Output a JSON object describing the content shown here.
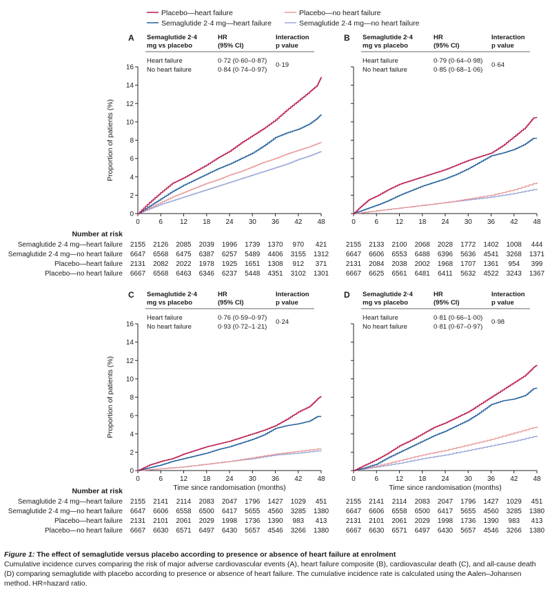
{
  "legend": [
    {
      "label": "Placebo—heart failure",
      "color": "#b8174a"
    },
    {
      "label": "Placebo—no heart failure",
      "color": "#e89a9a"
    },
    {
      "label": "Semaglutide 2·4 mg—heart failure",
      "color": "#1f5e9a"
    },
    {
      "label": "Semaglutide 2·4 mg—no heart failure",
      "color": "#9aa6d8"
    }
  ],
  "table_header": {
    "col1": "Semaglutide 2·4 mg vs placebo",
    "col2": "HR (95% CI)",
    "col3": "Interaction p value"
  },
  "risk_title": "Number at risk",
  "risk_labels": [
    "Semaglutide 2·4 mg—heart failure",
    "Semaglutide 2·4 mg—no heart failure",
    "Placebo—heart failure",
    "Placebo—no heart failure"
  ],
  "xlabel": "Time since randomisation (months)",
  "ylabel": "Proportion of patients (%)",
  "caption": {
    "fig_label": "Figure 1:",
    "title": "The effect of semaglutide versus placebo according to presence or absence of heart failure at enrolment",
    "body": "Cumulative incidence curves comparing the risk of major adverse cardiovascular events (A), heart failure composite (B), cardiovascular death (C), and all-cause death (D) comparing semaglutide with placebo according to presence or absence of heart failure. The cumulative incidence rate is calculated using the Aalen–Johansen method. HR=hazard ratio."
  },
  "chart_data": [
    {
      "panel": "A",
      "type": "line",
      "xlim": [
        0,
        48
      ],
      "ylim": [
        0,
        16
      ],
      "xticks": [
        0,
        6,
        12,
        18,
        24,
        30,
        36,
        42,
        48
      ],
      "yticks": [
        0,
        2,
        4,
        6,
        8,
        10,
        12,
        14,
        16
      ],
      "hr_rows": [
        {
          "group": "Heart failure",
          "hr": "0·72 (0·60–0·87)"
        },
        {
          "group": "No heart failure",
          "hr": "0·84 (0·74–0·97)"
        }
      ],
      "p_interaction": "0·19",
      "series": [
        {
          "name": "Placebo—heart failure",
          "color": "#b8174a",
          "x": [
            0,
            3,
            6,
            9,
            12,
            15,
            18,
            21,
            24,
            27,
            30,
            33,
            36,
            39,
            42,
            45,
            47,
            48
          ],
          "y": [
            0,
            1.2,
            2.3,
            3.3,
            3.9,
            4.6,
            5.3,
            6.1,
            6.8,
            7.7,
            8.5,
            9.3,
            10.2,
            11.3,
            12.3,
            13.3,
            14.0,
            14.9
          ]
        },
        {
          "name": "Semaglutide 2·4 mg—heart failure",
          "color": "#1f5e9a",
          "x": [
            0,
            3,
            6,
            9,
            12,
            15,
            18,
            21,
            24,
            27,
            30,
            33,
            36,
            39,
            42,
            45,
            47,
            48
          ],
          "y": [
            0,
            0.8,
            1.6,
            2.4,
            3.1,
            3.7,
            4.3,
            4.9,
            5.4,
            6.0,
            6.6,
            7.4,
            8.3,
            8.8,
            9.2,
            9.8,
            10.4,
            10.8
          ]
        },
        {
          "name": "Placebo—no heart failure",
          "color": "#e89a9a",
          "x": [
            0,
            3,
            6,
            9,
            12,
            15,
            18,
            21,
            24,
            27,
            30,
            33,
            36,
            39,
            42,
            45,
            48
          ],
          "y": [
            0,
            0.6,
            1.2,
            1.8,
            2.3,
            2.8,
            3.3,
            3.7,
            4.2,
            4.6,
            5.1,
            5.6,
            6.0,
            6.5,
            6.9,
            7.3,
            7.8
          ]
        },
        {
          "name": "Semaglutide 2·4 mg—no heart failure",
          "color": "#9aa6d8",
          "x": [
            0,
            3,
            6,
            9,
            12,
            15,
            18,
            21,
            24,
            27,
            30,
            33,
            36,
            39,
            42,
            45,
            48
          ],
          "y": [
            0,
            0.5,
            1.0,
            1.4,
            1.8,
            2.2,
            2.6,
            3.0,
            3.4,
            3.8,
            4.2,
            4.6,
            5.0,
            5.4,
            5.9,
            6.3,
            6.8
          ]
        }
      ],
      "risk_table": [
        [
          2155,
          2126,
          2085,
          2039,
          1996,
          1739,
          1370,
          970,
          421
        ],
        [
          6647,
          6568,
          6475,
          6387,
          6257,
          5489,
          4406,
          3155,
          1312
        ],
        [
          2131,
          2082,
          2022,
          1978,
          1925,
          1651,
          1308,
          912,
          371
        ],
        [
          6667,
          6568,
          6463,
          6346,
          6237,
          5448,
          4351,
          3102,
          1301
        ]
      ]
    },
    {
      "panel": "B",
      "type": "line",
      "xlim": [
        0,
        48
      ],
      "ylim": [
        0,
        16
      ],
      "xticks": [
        0,
        6,
        12,
        18,
        24,
        30,
        36,
        42,
        48
      ],
      "yticks": [],
      "hr_rows": [
        {
          "group": "Heart failure",
          "hr": "0·79 (0·64–0·98)"
        },
        {
          "group": "No heart failure",
          "hr": "0·85 (0·68–1·06)"
        }
      ],
      "p_interaction": "0·64",
      "series": [
        {
          "name": "Placebo—heart failure",
          "color": "#b8174a",
          "x": [
            0,
            2,
            4,
            6,
            9,
            12,
            15,
            18,
            21,
            24,
            27,
            30,
            33,
            36,
            39,
            42,
            45,
            47,
            48
          ],
          "y": [
            0,
            0.8,
            1.5,
            1.9,
            2.6,
            3.2,
            3.6,
            4.0,
            4.4,
            4.8,
            5.3,
            5.8,
            6.2,
            6.6,
            7.4,
            8.4,
            9.4,
            10.4,
            10.5
          ]
        },
        {
          "name": "Semaglutide 2·4 mg—heart failure",
          "color": "#1f5e9a",
          "x": [
            0,
            2,
            4,
            6,
            9,
            12,
            15,
            18,
            21,
            24,
            27,
            30,
            33,
            36,
            39,
            42,
            45,
            47,
            48
          ],
          "y": [
            0,
            0.3,
            0.6,
            0.9,
            1.4,
            2.0,
            2.5,
            3.0,
            3.4,
            3.8,
            4.3,
            4.9,
            5.6,
            6.3,
            6.6,
            7.0,
            7.6,
            8.2,
            8.2
          ]
        },
        {
          "name": "Placebo—no heart failure",
          "color": "#e89a9a",
          "x": [
            0,
            6,
            12,
            18,
            24,
            30,
            36,
            42,
            48
          ],
          "y": [
            0,
            0.3,
            0.6,
            0.9,
            1.2,
            1.6,
            2.0,
            2.6,
            3.4
          ]
        },
        {
          "name": "Semaglutide 2·4 mg—no heart failure",
          "color": "#9aa6d8",
          "x": [
            0,
            6,
            12,
            18,
            24,
            30,
            36,
            42,
            48
          ],
          "y": [
            0,
            0.3,
            0.6,
            0.9,
            1.2,
            1.5,
            1.8,
            2.2,
            2.7
          ]
        }
      ],
      "risk_table": [
        [
          2155,
          2133,
          2100,
          2068,
          2028,
          1772,
          1402,
          1008,
          444
        ],
        [
          6647,
          6606,
          6553,
          6488,
          6396,
          5636,
          4541,
          3268,
          1371
        ],
        [
          2131,
          2084,
          2038,
          2002,
          1968,
          1707,
          1361,
          954,
          399
        ],
        [
          6667,
          6625,
          6561,
          6481,
          6411,
          5632,
          4522,
          3243,
          1367
        ]
      ]
    },
    {
      "panel": "C",
      "type": "line",
      "xlim": [
        0,
        48
      ],
      "ylim": [
        0,
        16
      ],
      "xticks": [
        0,
        6,
        12,
        18,
        24,
        30,
        36,
        42,
        48
      ],
      "yticks": [
        0,
        2,
        4,
        6,
        8,
        10,
        12,
        14,
        16
      ],
      "hr_rows": [
        {
          "group": "Heart failure",
          "hr": "0·76 (0·59–0·97)"
        },
        {
          "group": "No heart failure",
          "hr": "0·93 (0·72–1·21)"
        }
      ],
      "p_interaction": "0·24",
      "series": [
        {
          "name": "Placebo—heart failure",
          "color": "#b8174a",
          "x": [
            0,
            3,
            6,
            9,
            12,
            15,
            18,
            21,
            24,
            27,
            30,
            33,
            36,
            39,
            42,
            45,
            47,
            48
          ],
          "y": [
            0,
            0.6,
            1.0,
            1.3,
            1.8,
            2.2,
            2.6,
            2.9,
            3.2,
            3.6,
            4.0,
            4.4,
            4.9,
            5.6,
            6.4,
            7.0,
            7.8,
            8.1
          ]
        },
        {
          "name": "Semaglutide 2·4 mg—heart failure",
          "color": "#1f5e9a",
          "x": [
            0,
            3,
            6,
            9,
            12,
            15,
            18,
            21,
            24,
            27,
            30,
            33,
            36,
            39,
            42,
            45,
            47,
            48
          ],
          "y": [
            0,
            0.3,
            0.6,
            1.0,
            1.3,
            1.6,
            1.9,
            2.3,
            2.6,
            3.0,
            3.4,
            3.9,
            4.6,
            4.9,
            5.1,
            5.4,
            5.9,
            5.9
          ]
        },
        {
          "name": "Placebo—no heart failure",
          "color": "#e89a9a",
          "x": [
            0,
            6,
            12,
            18,
            24,
            30,
            36,
            42,
            48
          ],
          "y": [
            0,
            0.2,
            0.4,
            0.7,
            1.0,
            1.4,
            1.8,
            2.1,
            2.4
          ]
        },
        {
          "name": "Semaglutide 2·4 mg—no heart failure",
          "color": "#9aa6d8",
          "x": [
            0,
            6,
            12,
            18,
            24,
            30,
            36,
            42,
            48
          ],
          "y": [
            0,
            0.2,
            0.4,
            0.7,
            1.0,
            1.3,
            1.7,
            1.9,
            2.2
          ]
        }
      ],
      "risk_table": [
        [
          2155,
          2141,
          2114,
          2083,
          2047,
          1796,
          1427,
          1029,
          451
        ],
        [
          6647,
          6606,
          6558,
          6500,
          6417,
          5655,
          4560,
          3285,
          1380
        ],
        [
          2131,
          2101,
          2061,
          2029,
          1998,
          1736,
          1390,
          983,
          413
        ],
        [
          6667,
          6630,
          6571,
          6497,
          6430,
          5657,
          4546,
          3266,
          1380
        ]
      ]
    },
    {
      "panel": "D",
      "type": "line",
      "xlim": [
        0,
        48
      ],
      "ylim": [
        0,
        16
      ],
      "xticks": [
        0,
        6,
        12,
        18,
        24,
        30,
        36,
        42,
        48
      ],
      "yticks": [],
      "hr_rows": [
        {
          "group": "Heart failure",
          "hr": "0·81 (0·66–1·00)"
        },
        {
          "group": "No heart failure",
          "hr": "0·81 (0·67–0·97)"
        }
      ],
      "p_interaction": "0·98",
      "series": [
        {
          "name": "Placebo—heart failure",
          "color": "#b8174a",
          "x": [
            0,
            3,
            6,
            9,
            12,
            15,
            18,
            21,
            24,
            27,
            30,
            33,
            36,
            39,
            42,
            45,
            47,
            48
          ],
          "y": [
            0,
            0.6,
            1.2,
            1.9,
            2.7,
            3.3,
            4.0,
            4.7,
            5.2,
            5.8,
            6.4,
            7.2,
            8.0,
            8.8,
            9.6,
            10.4,
            11.2,
            11.5
          ]
        },
        {
          "name": "Semaglutide 2·4 mg—heart failure",
          "color": "#1f5e9a",
          "x": [
            0,
            3,
            6,
            9,
            12,
            15,
            18,
            21,
            24,
            27,
            30,
            33,
            36,
            39,
            42,
            45,
            47,
            48
          ],
          "y": [
            0,
            0.3,
            0.7,
            1.4,
            2.0,
            2.6,
            3.2,
            3.8,
            4.3,
            4.9,
            5.5,
            6.3,
            7.2,
            7.6,
            7.8,
            8.2,
            8.9,
            9.0
          ]
        },
        {
          "name": "Placebo—no heart failure",
          "color": "#e89a9a",
          "x": [
            0,
            6,
            12,
            18,
            24,
            30,
            36,
            42,
            48
          ],
          "y": [
            0,
            0.5,
            1.1,
            1.7,
            2.2,
            2.8,
            3.4,
            4.1,
            4.8
          ]
        },
        {
          "name": "Semaglutide 2·4 mg—no heart failure",
          "color": "#9aa6d8",
          "x": [
            0,
            6,
            12,
            18,
            24,
            30,
            36,
            42,
            48
          ],
          "y": [
            0,
            0.4,
            0.8,
            1.3,
            1.7,
            2.2,
            2.7,
            3.2,
            3.8
          ]
        }
      ],
      "risk_table": [
        [
          2155,
          2141,
          2114,
          2083,
          2047,
          1796,
          1427,
          1029,
          451
        ],
        [
          6647,
          6606,
          6558,
          6500,
          6417,
          5655,
          4560,
          3285,
          1380
        ],
        [
          2131,
          2101,
          2061,
          2029,
          1998,
          1736,
          1390,
          983,
          413
        ],
        [
          6667,
          6630,
          6571,
          6497,
          6430,
          5657,
          4546,
          3266,
          1380
        ]
      ]
    }
  ]
}
